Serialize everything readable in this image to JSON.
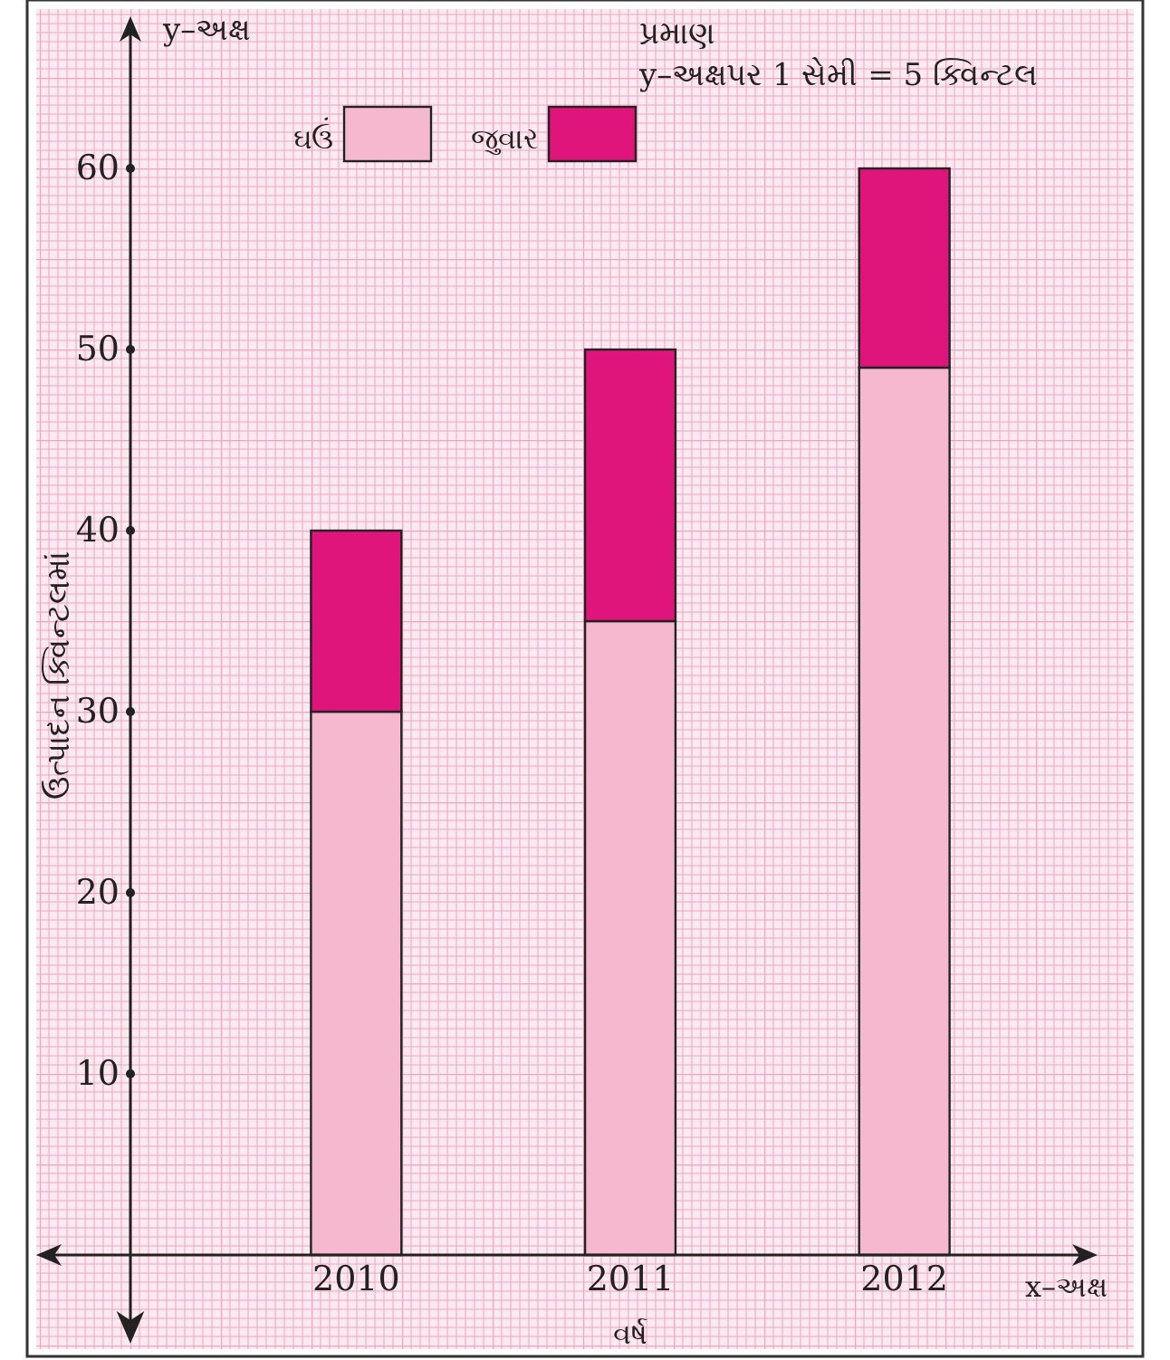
{
  "chart_data": {
    "type": "bar",
    "stacked": true,
    "categories": [
      "2010",
      "2011",
      "2012"
    ],
    "series": [
      {
        "name": "ઘઉં",
        "color": "#f5b8cf",
        "values": [
          30,
          35,
          49
        ]
      },
      {
        "name": "જુવાર",
        "color": "#e0157c",
        "values": [
          10,
          15,
          11
        ]
      }
    ],
    "ylim": [
      0,
      68
    ],
    "yticks": [
      10,
      20,
      30,
      40,
      50,
      60
    ],
    "ylabel": "ઉત્પાદન ક્વિન્ટલમાં",
    "xlabel": "વર્ષ",
    "legend": "top",
    "annotations": [
      "y–અક્ષ",
      "x–અક્ષ",
      "પ્રમાણ",
      "y–અક્ષપર 1 સેમી = 5 ક્વિન્ટલ"
    ]
  }
}
